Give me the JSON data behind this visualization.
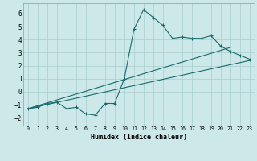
{
  "title": "",
  "xlabel": "Humidex (Indice chaleur)",
  "ylabel": "",
  "bg_color": "#cce8e8",
  "line_color": "#1a6b6b",
  "grid_color": "#aacece",
  "xlim": [
    -0.5,
    23.5
  ],
  "ylim": [
    -2.6,
    6.8
  ],
  "xticks": [
    0,
    1,
    2,
    3,
    4,
    5,
    6,
    7,
    8,
    9,
    10,
    11,
    12,
    13,
    14,
    15,
    16,
    17,
    18,
    19,
    20,
    21,
    22,
    23
  ],
  "yticks": [
    -2,
    -1,
    0,
    1,
    2,
    3,
    4,
    5,
    6
  ],
  "line1_x": [
    0,
    1,
    2,
    3,
    4,
    5,
    6,
    7,
    8,
    9,
    10,
    11,
    12,
    13,
    14,
    15,
    16,
    17,
    18,
    19,
    20,
    21,
    22,
    23
  ],
  "line1_y": [
    -1.3,
    -1.2,
    -0.9,
    -0.8,
    -1.3,
    -1.2,
    -1.7,
    -1.8,
    -0.9,
    -0.9,
    1.0,
    4.8,
    6.3,
    5.7,
    5.1,
    4.1,
    4.2,
    4.1,
    4.1,
    4.3,
    3.5,
    3.1,
    2.8,
    2.5
  ],
  "line2_x": [
    0,
    23
  ],
  "line2_y": [
    -1.3,
    2.4
  ],
  "line3_x": [
    0,
    21
  ],
  "line3_y": [
    -1.3,
    3.4
  ]
}
